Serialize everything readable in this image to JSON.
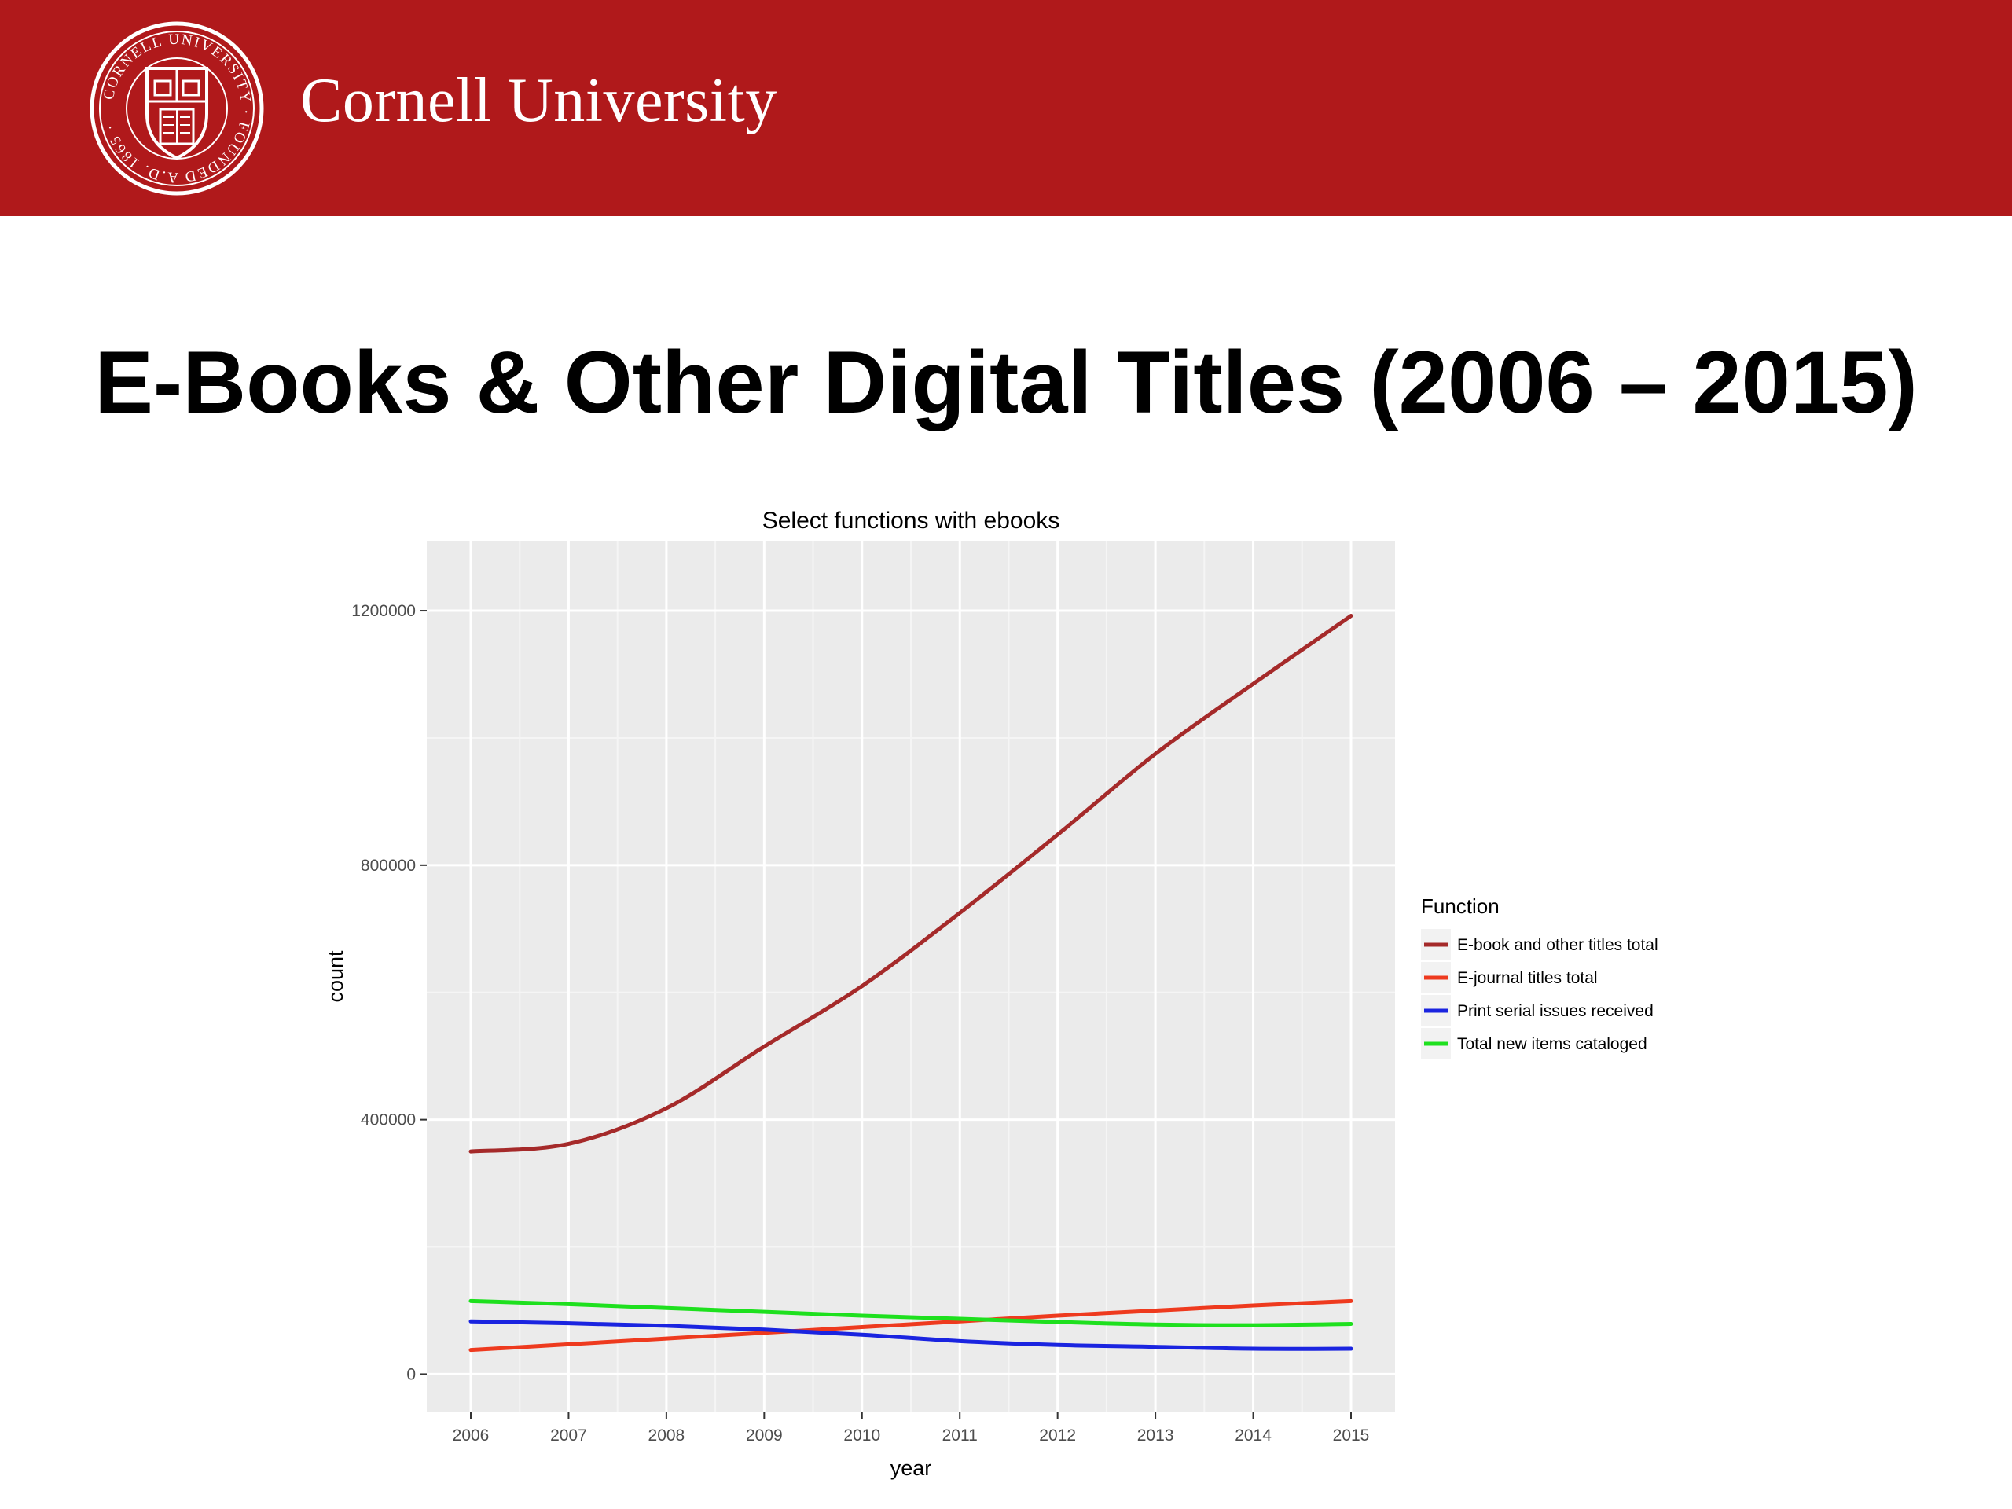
{
  "header": {
    "university_name": "Cornell University",
    "seal_text": "CORNELL UNIVERSITY · FOUNDED A.D. 1865",
    "banner_color": "#b0191b"
  },
  "slide": {
    "title": "E-Books & Other Digital Titles (2006 – 2015)"
  },
  "chart_data": {
    "type": "line",
    "title": "Select functions with ebooks",
    "xlabel": "year",
    "ylabel": "count",
    "x": [
      2006,
      2007,
      2008,
      2009,
      2010,
      2011,
      2012,
      2013,
      2014,
      2015
    ],
    "x_ticks": [
      "2006",
      "2007",
      "2008",
      "2009",
      "2010",
      "2011",
      "2012",
      "2013",
      "2014",
      "2015"
    ],
    "y_ticks": [
      "0",
      "400000",
      "800000",
      "1200000"
    ],
    "xlim": [
      2005.55,
      2015.45
    ],
    "ylim": [
      -60000,
      1310000
    ],
    "grid": true,
    "panel_background": "#ebebeb",
    "legend": {
      "title": "Function",
      "position": "right"
    },
    "series": [
      {
        "name": "E-book and other titles total",
        "color": "#a52a2a",
        "values": [
          350000,
          362000,
          418000,
          515000,
          610000,
          725000,
          848000,
          975000,
          1085000,
          1192000
        ]
      },
      {
        "name": "E-journal titles total",
        "color": "#ee3a1e",
        "values": [
          38000,
          47000,
          56000,
          65000,
          74000,
          83000,
          92000,
          100000,
          108000,
          115000
        ]
      },
      {
        "name": "Print serial issues received",
        "color": "#1a24e0",
        "values": [
          83000,
          80000,
          76000,
          70000,
          62000,
          52000,
          46000,
          43000,
          40000,
          40000
        ]
      },
      {
        "name": "Total new items cataloged",
        "color": "#1ee01e",
        "values": [
          115000,
          110000,
          104000,
          98000,
          92000,
          87000,
          82000,
          78000,
          77000,
          79000
        ]
      }
    ]
  }
}
